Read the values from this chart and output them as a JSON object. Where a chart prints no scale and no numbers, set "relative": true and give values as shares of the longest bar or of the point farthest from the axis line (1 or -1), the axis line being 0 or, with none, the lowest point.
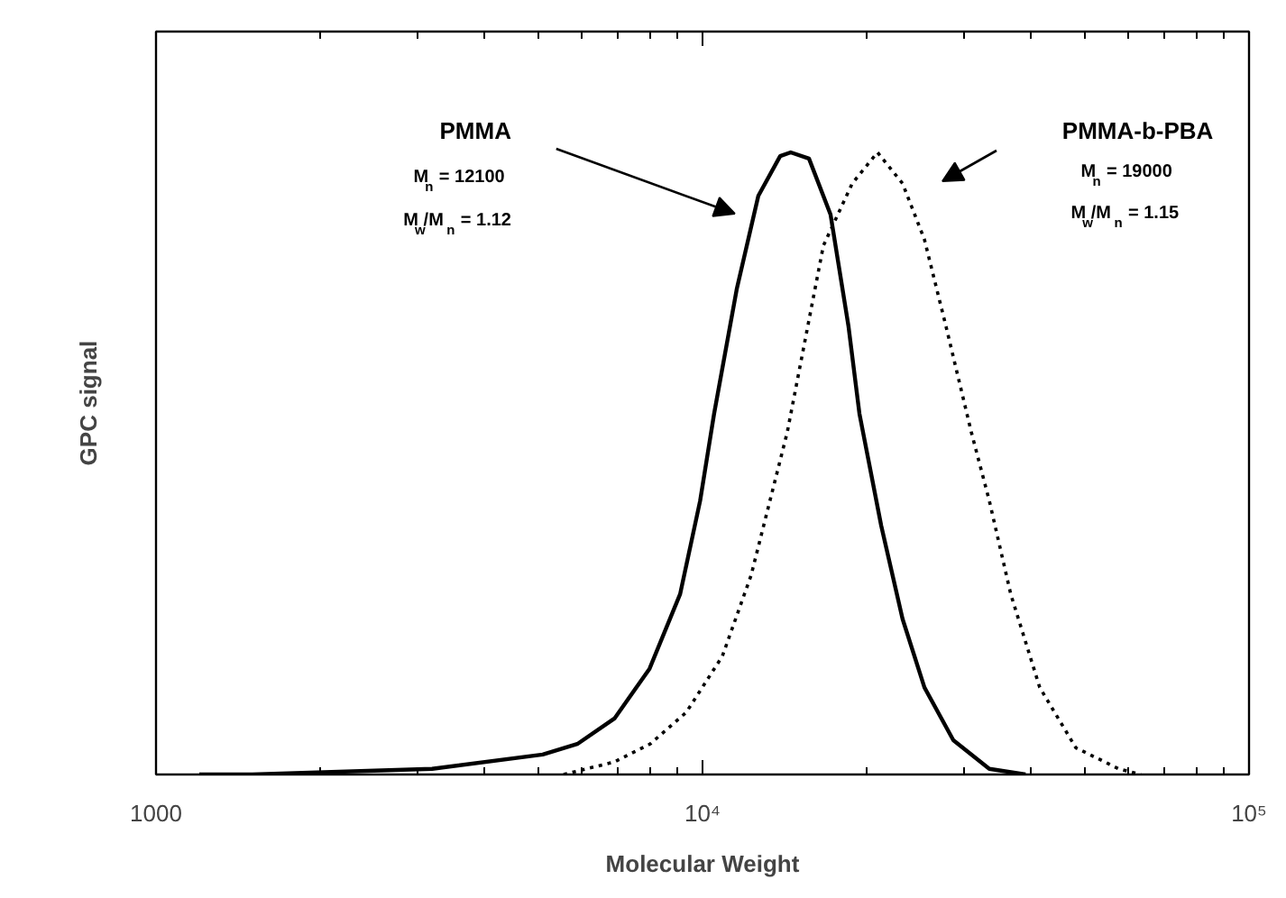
{
  "chart_data": {
    "type": "line",
    "xlabel": "Molecular Weight",
    "ylabel": "GPC signal",
    "relative": true,
    "log": "x",
    "xlim": [
      1000,
      100000
    ],
    "xticks": [
      1000,
      {
        "value": 10000,
        "label": "10⁴"
      },
      {
        "value": 100000,
        "label": "10⁵"
      }
    ],
    "grid": false,
    "series": [
      {
        "color": "#000000",
        "line_style": "solid",
        "x": [
          1200,
          1500,
          3200,
          5100,
          5900,
          6900,
          8000,
          9100,
          9900,
          10500,
          11550,
          12650,
          13870,
          14500,
          15660,
          17150,
          18500,
          19370,
          21230,
          23230,
          25470,
          28770,
          33480,
          39000
        ],
        "values": [
          0,
          0,
          0.009,
          0.032,
          0.049,
          0.09,
          0.17,
          0.29,
          0.44,
          0.58,
          0.78,
          0.93,
          0.994,
          1.0,
          0.99,
          0.9,
          0.72,
          0.58,
          0.4,
          0.25,
          0.14,
          0.055,
          0.009,
          0
        ]
      },
      {
        "color": "#000000",
        "line_style": "dotted",
        "x": [
          5570,
          6890,
          8020,
          9340,
          10870,
          12270,
          14290,
          16640,
          18790,
          20900,
          23230,
          25470,
          27900,
          31040,
          33480,
          36640,
          41400,
          48200,
          57800,
          63400
        ],
        "values": [
          0,
          0.02,
          0.049,
          0.1,
          0.19,
          0.32,
          0.55,
          0.85,
          0.95,
          1.0,
          0.95,
          0.86,
          0.72,
          0.55,
          0.44,
          0.29,
          0.14,
          0.043,
          0.009,
          0
        ]
      }
    ],
    "annotations": [
      "PMMA",
      "PMMA-b-PBA",
      "M$_{n}$ = 12100",
      "M$_{w}$/M$_{n}$ = 1.12",
      "M$_{n}$ = 19000",
      "M$_{w}$/M$_{n}$ = 1.15"
    ]
  }
}
